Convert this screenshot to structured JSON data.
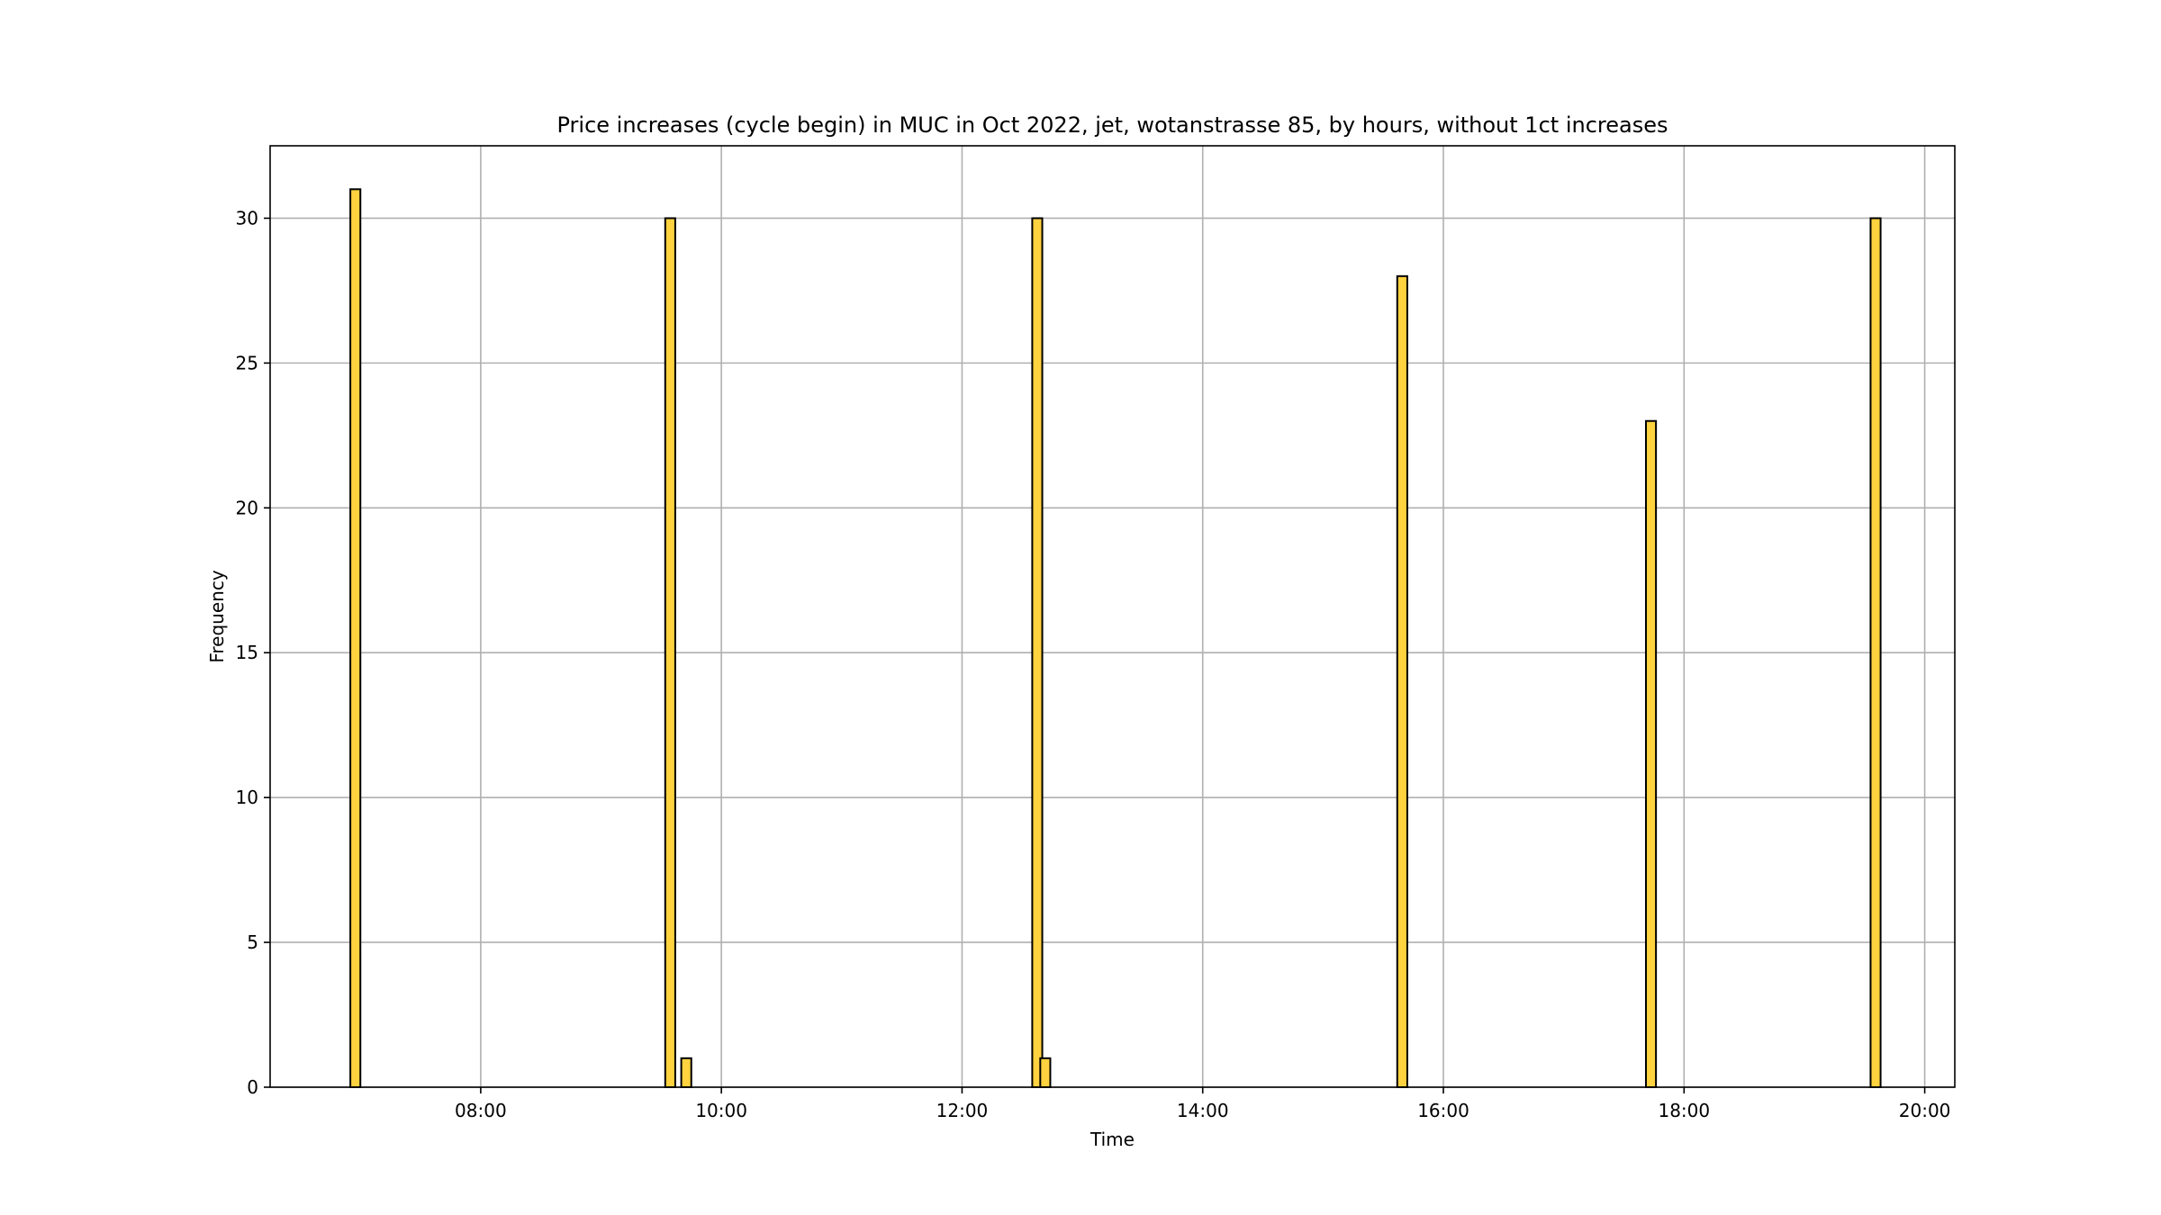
{
  "chart_data": {
    "type": "bar",
    "title": "Price increases (cycle begin) in MUC in Oct 2022, jet, wotanstrasse 85, by hours, without 1ct increases",
    "xlabel": "Time",
    "ylabel": "Frequency",
    "xlim": [
      "06:15",
      "20:15"
    ],
    "ylim": [
      0,
      32.5
    ],
    "bin_width_minutes": 5,
    "x_ticks": [
      "08:00",
      "10:00",
      "12:00",
      "14:00",
      "16:00",
      "18:00",
      "20:00"
    ],
    "y_ticks": [
      0,
      5,
      10,
      15,
      20,
      25,
      30
    ],
    "grid": true,
    "bar_color": "#ffd23f",
    "bars": [
      {
        "start": "06:55",
        "value": 31
      },
      {
        "start": "09:32",
        "value": 30
      },
      {
        "start": "09:40",
        "value": 1
      },
      {
        "start": "12:35",
        "value": 30
      },
      {
        "start": "12:39",
        "value": 1
      },
      {
        "start": "15:37",
        "value": 28
      },
      {
        "start": "17:41",
        "value": 23
      },
      {
        "start": "19:33",
        "value": 30
      }
    ]
  }
}
